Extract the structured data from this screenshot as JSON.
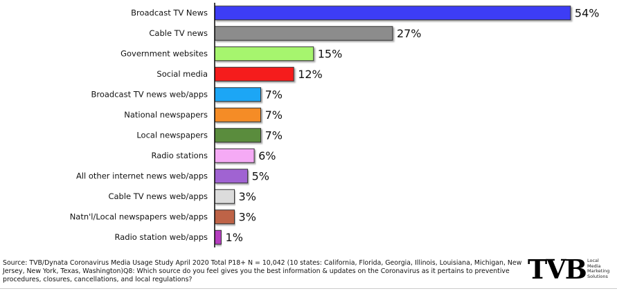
{
  "chart_data": {
    "type": "barh",
    "categories": [
      "Broadcast TV News",
      "Cable TV news",
      "Government websites",
      "Social media",
      "Broadcast TV news web/apps",
      "National newspapers",
      "Local newspapers",
      "Radio stations",
      "All other internet news web/apps",
      "Cable TV news web/apps",
      "Natn'l/Local newspapers web/apps",
      "Radio station web/apps"
    ],
    "values": [
      54,
      27,
      15,
      12,
      7,
      7,
      7,
      6,
      5,
      3,
      3,
      1
    ],
    "value_labels": [
      "54%",
      "27%",
      "15%",
      "12%",
      "7%",
      "7%",
      "7%",
      "6%",
      "5%",
      "3%",
      "3%",
      "1%"
    ],
    "colors": [
      "#3c3cf5",
      "#8c8c8c",
      "#a6f56e",
      "#f51e1e",
      "#1ea6f5",
      "#f58c28",
      "#5a8c3c",
      "#f5aaf5",
      "#a064d2",
      "#dcdcdc",
      "#be6446",
      "#b43cbe"
    ],
    "xlim": [
      0,
      60
    ],
    "source": "Source: TVB/Dynata  Coronavirus Media Usage Study April 2020 Total P18+ N = 10,042 (10 states: California, Florida, Georgia, Illinois, Louisiana, Michigan, New Jersey, New York, Texas, Washington)Q8:  Which source do you feel gives you the best information & updates on the Coronavirus as it pertains to preventive procedures, closures, cancellations, and local regulations?"
  },
  "logo": {
    "name": "TVB",
    "tagline": [
      "Local",
      "Media",
      "Marketing",
      "Solutions"
    ]
  }
}
